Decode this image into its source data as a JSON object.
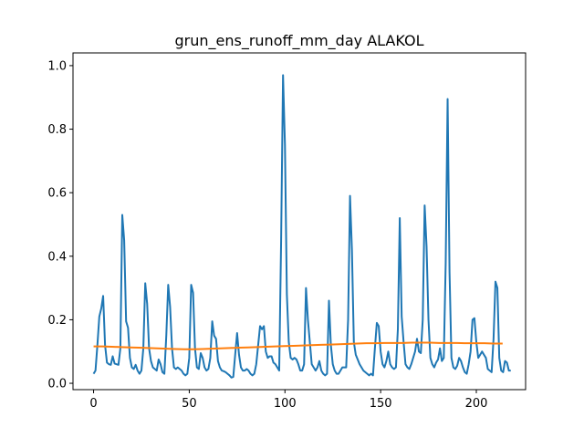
{
  "chart_data": {
    "type": "line",
    "title": "grun_ens_runoff_mm_day ALAKOL",
    "xlabel": "",
    "ylabel": "",
    "xlim": [
      -10.75,
      225.75
    ],
    "ylim": [
      -0.02,
      1.04
    ],
    "xticks": [
      0,
      50,
      100,
      150,
      200
    ],
    "yticks": [
      0.0,
      0.2,
      0.4,
      0.6,
      0.8,
      1.0
    ],
    "xtick_labels": [
      "0",
      "50",
      "100",
      "150",
      "200"
    ],
    "ytick_labels": [
      "0.0",
      "0.2",
      "0.4",
      "0.6",
      "0.8",
      "1.0"
    ],
    "grid": false,
    "series": [
      {
        "color": "#1f77b4",
        "values": [
          0.03,
          0.04,
          0.12,
          0.21,
          0.235,
          0.275,
          0.12,
          0.065,
          0.06,
          0.058,
          0.085,
          0.062,
          0.06,
          0.058,
          0.11,
          0.53,
          0.45,
          0.195,
          0.175,
          0.08,
          0.05,
          0.045,
          0.058,
          0.04,
          0.03,
          0.04,
          0.11,
          0.315,
          0.25,
          0.11,
          0.07,
          0.05,
          0.045,
          0.04,
          0.075,
          0.06,
          0.035,
          0.03,
          0.15,
          0.31,
          0.24,
          0.11,
          0.05,
          0.045,
          0.05,
          0.045,
          0.04,
          0.03,
          0.025,
          0.03,
          0.08,
          0.31,
          0.285,
          0.11,
          0.05,
          0.045,
          0.095,
          0.08,
          0.05,
          0.04,
          0.045,
          0.08,
          0.195,
          0.15,
          0.14,
          0.07,
          0.05,
          0.04,
          0.038,
          0.035,
          0.03,
          0.025,
          0.018,
          0.02,
          0.09,
          0.158,
          0.09,
          0.05,
          0.04,
          0.04,
          0.045,
          0.04,
          0.03,
          0.025,
          0.03,
          0.06,
          0.12,
          0.18,
          0.17,
          0.18,
          0.1,
          0.08,
          0.085,
          0.085,
          0.065,
          0.06,
          0.05,
          0.04,
          0.45,
          0.97,
          0.75,
          0.28,
          0.13,
          0.08,
          0.075,
          0.08,
          0.075,
          0.06,
          0.04,
          0.04,
          0.06,
          0.3,
          0.2,
          0.13,
          0.06,
          0.05,
          0.04,
          0.05,
          0.07,
          0.04,
          0.03,
          0.025,
          0.03,
          0.26,
          0.12,
          0.06,
          0.04,
          0.03,
          0.03,
          0.04,
          0.05,
          0.05,
          0.05,
          0.2,
          0.59,
          0.42,
          0.13,
          0.09,
          0.075,
          0.06,
          0.05,
          0.04,
          0.035,
          0.03,
          0.025,
          0.03,
          0.025,
          0.11,
          0.19,
          0.18,
          0.1,
          0.06,
          0.05,
          0.07,
          0.1,
          0.06,
          0.05,
          0.045,
          0.05,
          0.17,
          0.52,
          0.21,
          0.13,
          0.06,
          0.05,
          0.045,
          0.06,
          0.08,
          0.1,
          0.14,
          0.1,
          0.095,
          0.2,
          0.56,
          0.43,
          0.2,
          0.08,
          0.06,
          0.05,
          0.065,
          0.075,
          0.11,
          0.07,
          0.08,
          0.38,
          0.895,
          0.35,
          0.08,
          0.05,
          0.045,
          0.055,
          0.08,
          0.07,
          0.05,
          0.035,
          0.03,
          0.06,
          0.1,
          0.2,
          0.205,
          0.13,
          0.08,
          0.09,
          0.1,
          0.09,
          0.08,
          0.045,
          0.04,
          0.035,
          0.14,
          0.32,
          0.3,
          0.08,
          0.04,
          0.035,
          0.07,
          0.065,
          0.04,
          0.04
        ]
      },
      {
        "color": "#ff7f0e",
        "values": [
          0.116,
          0.116,
          0.115,
          0.114,
          0.113,
          0.112,
          0.111,
          0.11,
          0.109,
          0.108,
          0.107,
          0.107,
          0.108,
          0.109,
          0.11,
          0.111,
          0.112,
          0.113,
          0.114,
          0.115,
          0.116,
          0.117,
          0.118,
          0.119,
          0.12,
          0.121,
          0.122,
          0.123,
          0.124,
          0.125,
          0.126,
          0.126,
          0.127,
          0.127,
          0.127,
          0.128,
          0.128,
          0.128,
          0.127,
          0.127,
          0.127,
          0.126,
          0.126,
          0.126,
          0.125,
          0.125
        ],
        "x_step": 4.75
      }
    ]
  }
}
